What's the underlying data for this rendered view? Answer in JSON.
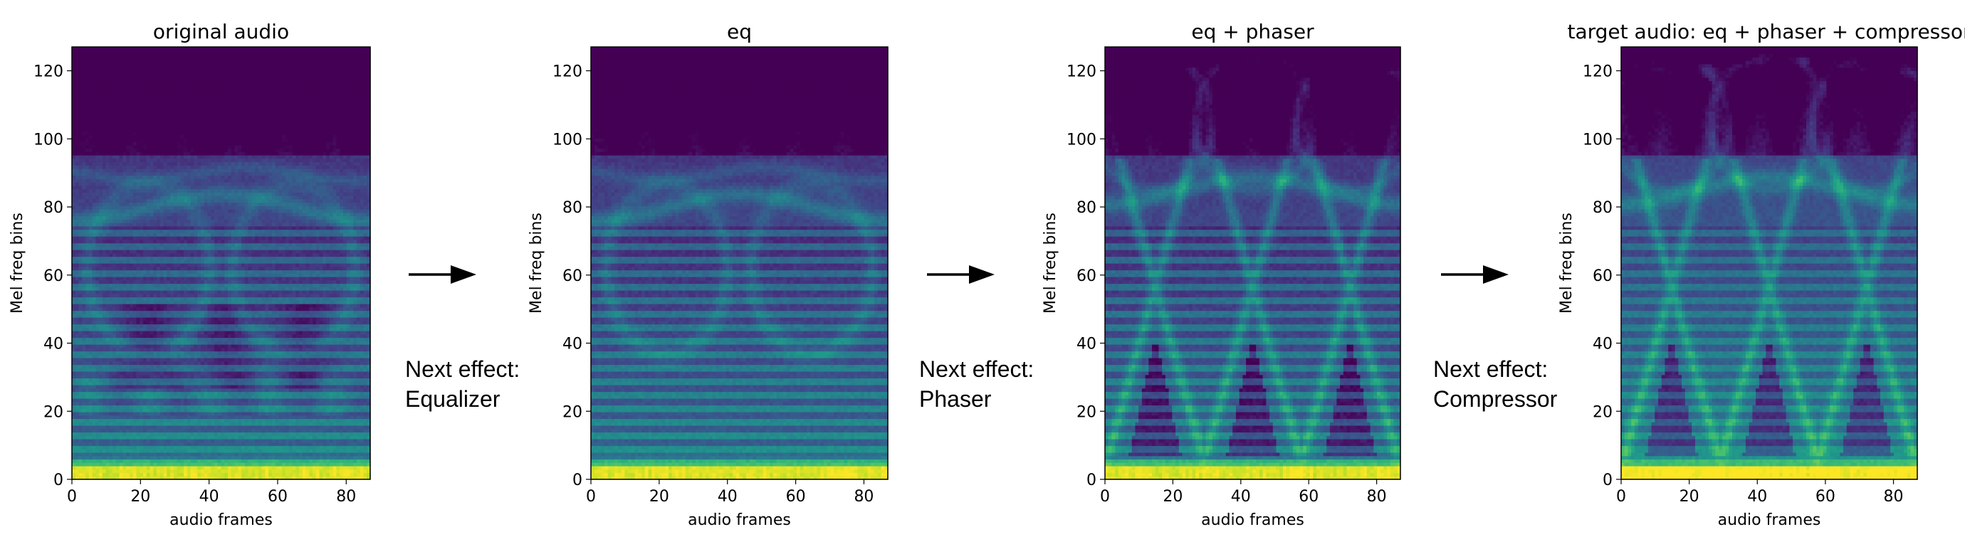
{
  "chart_data": [
    {
      "type": "heatmap",
      "title": "original audio",
      "xlabel": "audio frames",
      "ylabel": "Mel freq bins",
      "xlim": [
        0,
        87
      ],
      "ylim": [
        0,
        127
      ],
      "xticks": [
        0,
        20,
        40,
        60,
        80
      ],
      "yticks": [
        0,
        20,
        40,
        60,
        80,
        100,
        120
      ],
      "colormap": "viridis",
      "features": {
        "arc_low": 80,
        "arc_high": 90,
        "dark_band": 30,
        "phaser_vs": false,
        "compressed": false
      }
    },
    {
      "type": "heatmap",
      "title": "eq",
      "xlabel": "audio frames",
      "ylabel": "Mel freq bins",
      "xlim": [
        0,
        87
      ],
      "ylim": [
        0,
        127
      ],
      "xticks": [
        0,
        20,
        40,
        60,
        80
      ],
      "yticks": [
        0,
        20,
        40,
        60,
        80,
        100,
        120
      ],
      "colormap": "viridis",
      "features": {
        "arc_low": 80,
        "arc_high": 90,
        "dark_band": 0,
        "phaser_vs": false,
        "compressed": false
      }
    },
    {
      "type": "heatmap",
      "title": "eq + phaser",
      "xlabel": "audio frames",
      "ylabel": "Mel freq bins",
      "xlim": [
        0,
        87
      ],
      "ylim": [
        0,
        127
      ],
      "xticks": [
        0,
        20,
        40,
        60,
        80
      ],
      "yticks": [
        0,
        20,
        40,
        60,
        80,
        100,
        120
      ],
      "colormap": "viridis",
      "features": {
        "arc_low": 85,
        "arc_high": 122,
        "dark_band": 0,
        "phaser_vs": true,
        "compressed": false
      }
    },
    {
      "type": "heatmap",
      "title": "target audio: eq + phaser + compressor",
      "xlabel": "audio frames",
      "ylabel": "Mel freq bins",
      "xlim": [
        0,
        87
      ],
      "ylim": [
        0,
        127
      ],
      "xticks": [
        0,
        20,
        40,
        60,
        80
      ],
      "yticks": [
        0,
        20,
        40,
        60,
        80,
        100,
        120
      ],
      "colormap": "viridis",
      "features": {
        "arc_low": 85,
        "arc_high": 122,
        "dark_band": 0,
        "phaser_vs": true,
        "compressed": true
      }
    }
  ],
  "transitions": [
    {
      "line1": "Next effect:",
      "line2": "Equalizer"
    },
    {
      "line1": "Next effect:",
      "line2": "Phaser"
    },
    {
      "line1": "Next effect:",
      "line2": "Compressor"
    }
  ]
}
